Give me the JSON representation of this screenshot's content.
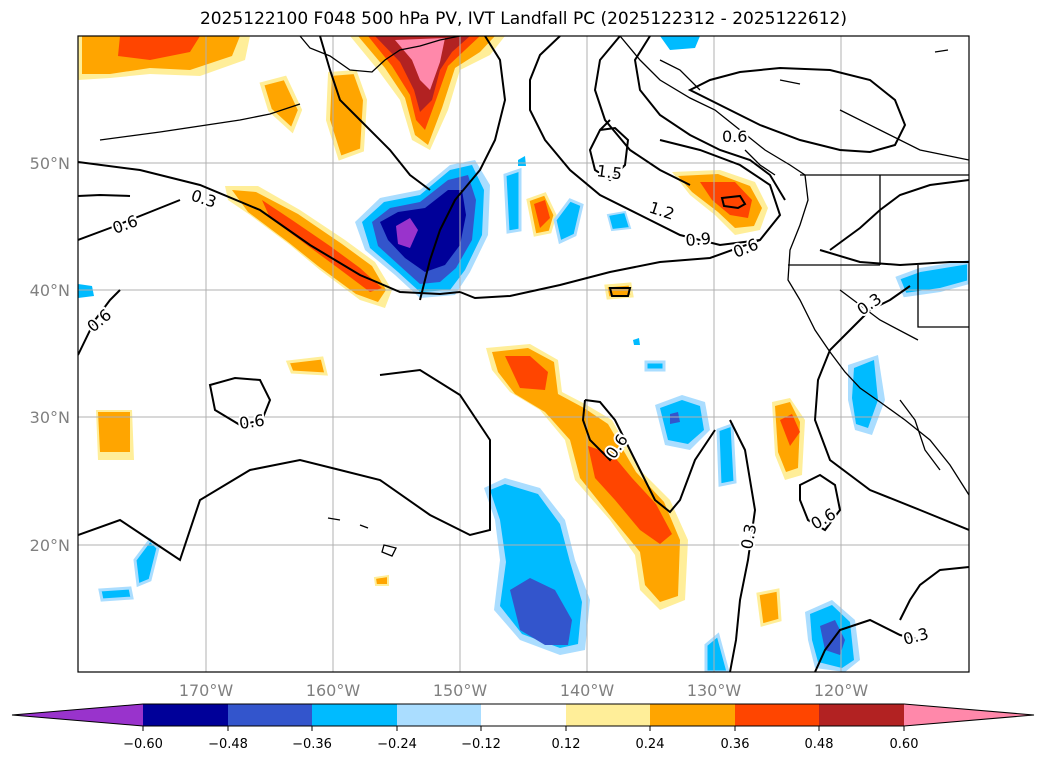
{
  "title": "2025122100 F048 500 hPa PV, IVT Landfall PC (2025122312 - 2025122612)",
  "map": {
    "lat_labels": [
      "50°N",
      "40°N",
      "30°N",
      "20°N"
    ],
    "lon_labels": [
      "170°W",
      "160°W",
      "150°W",
      "140°W",
      "130°W",
      "120°W"
    ],
    "contour_labels": [
      "0.3",
      "0.6",
      "0.6",
      "0.6",
      "1.5",
      "1.2",
      "0.9",
      "0.6",
      "0.3",
      "0.6",
      "0.6",
      "0.3",
      "0.6",
      "0.3"
    ]
  },
  "colorbar": {
    "ticks": [
      "−0.60",
      "−0.48",
      "−0.36",
      "−0.24",
      "−0.12",
      "0.12",
      "0.24",
      "0.36",
      "0.48",
      "0.60"
    ],
    "colors": [
      "#9933cc",
      "#000099",
      "#3355cc",
      "#00bbff",
      "#aaddff",
      "#ffffff",
      "#ffee99",
      "#ffa500",
      "#ff4500",
      "#b22222",
      "#ff88aa"
    ]
  }
}
